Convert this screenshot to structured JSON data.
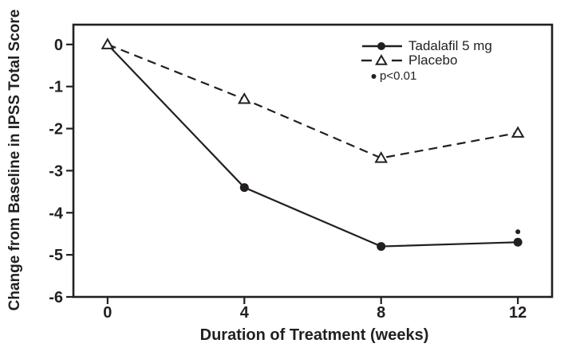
{
  "colors": {
    "ink": "#231f20",
    "background": "#ffffff"
  },
  "chart_data": {
    "type": "line",
    "title": "",
    "xlabel": "Duration of Treatment (weeks)",
    "ylabel": "Change from Baseline in IPSS Total Score",
    "x": [
      0,
      4,
      8,
      12
    ],
    "xticks": [
      "0",
      "4",
      "8",
      "12"
    ],
    "yticks": [
      "0",
      "-1",
      "-2",
      "-3",
      "-4",
      "-5",
      "-6"
    ],
    "xlim": [
      -1,
      13
    ],
    "ylim": [
      -6,
      0.47
    ],
    "grid": false,
    "legend_position": "inside-top-right",
    "series": [
      {
        "name": "Tadalafil 5 mg",
        "values": [
          0,
          -3.4,
          -4.8,
          -4.7
        ],
        "line_style": "solid",
        "marker": "filled-circle",
        "skip_first_marker": true
      },
      {
        "name": "Placebo",
        "values": [
          0,
          -1.3,
          -2.7,
          -2.1
        ],
        "line_style": "dashed",
        "marker": "open-triangle",
        "skip_first_marker": false
      }
    ],
    "annotations": [
      {
        "label": "p<0.01",
        "x": 12,
        "y": -4.45,
        "marker": "small-filled-dot"
      }
    ]
  }
}
